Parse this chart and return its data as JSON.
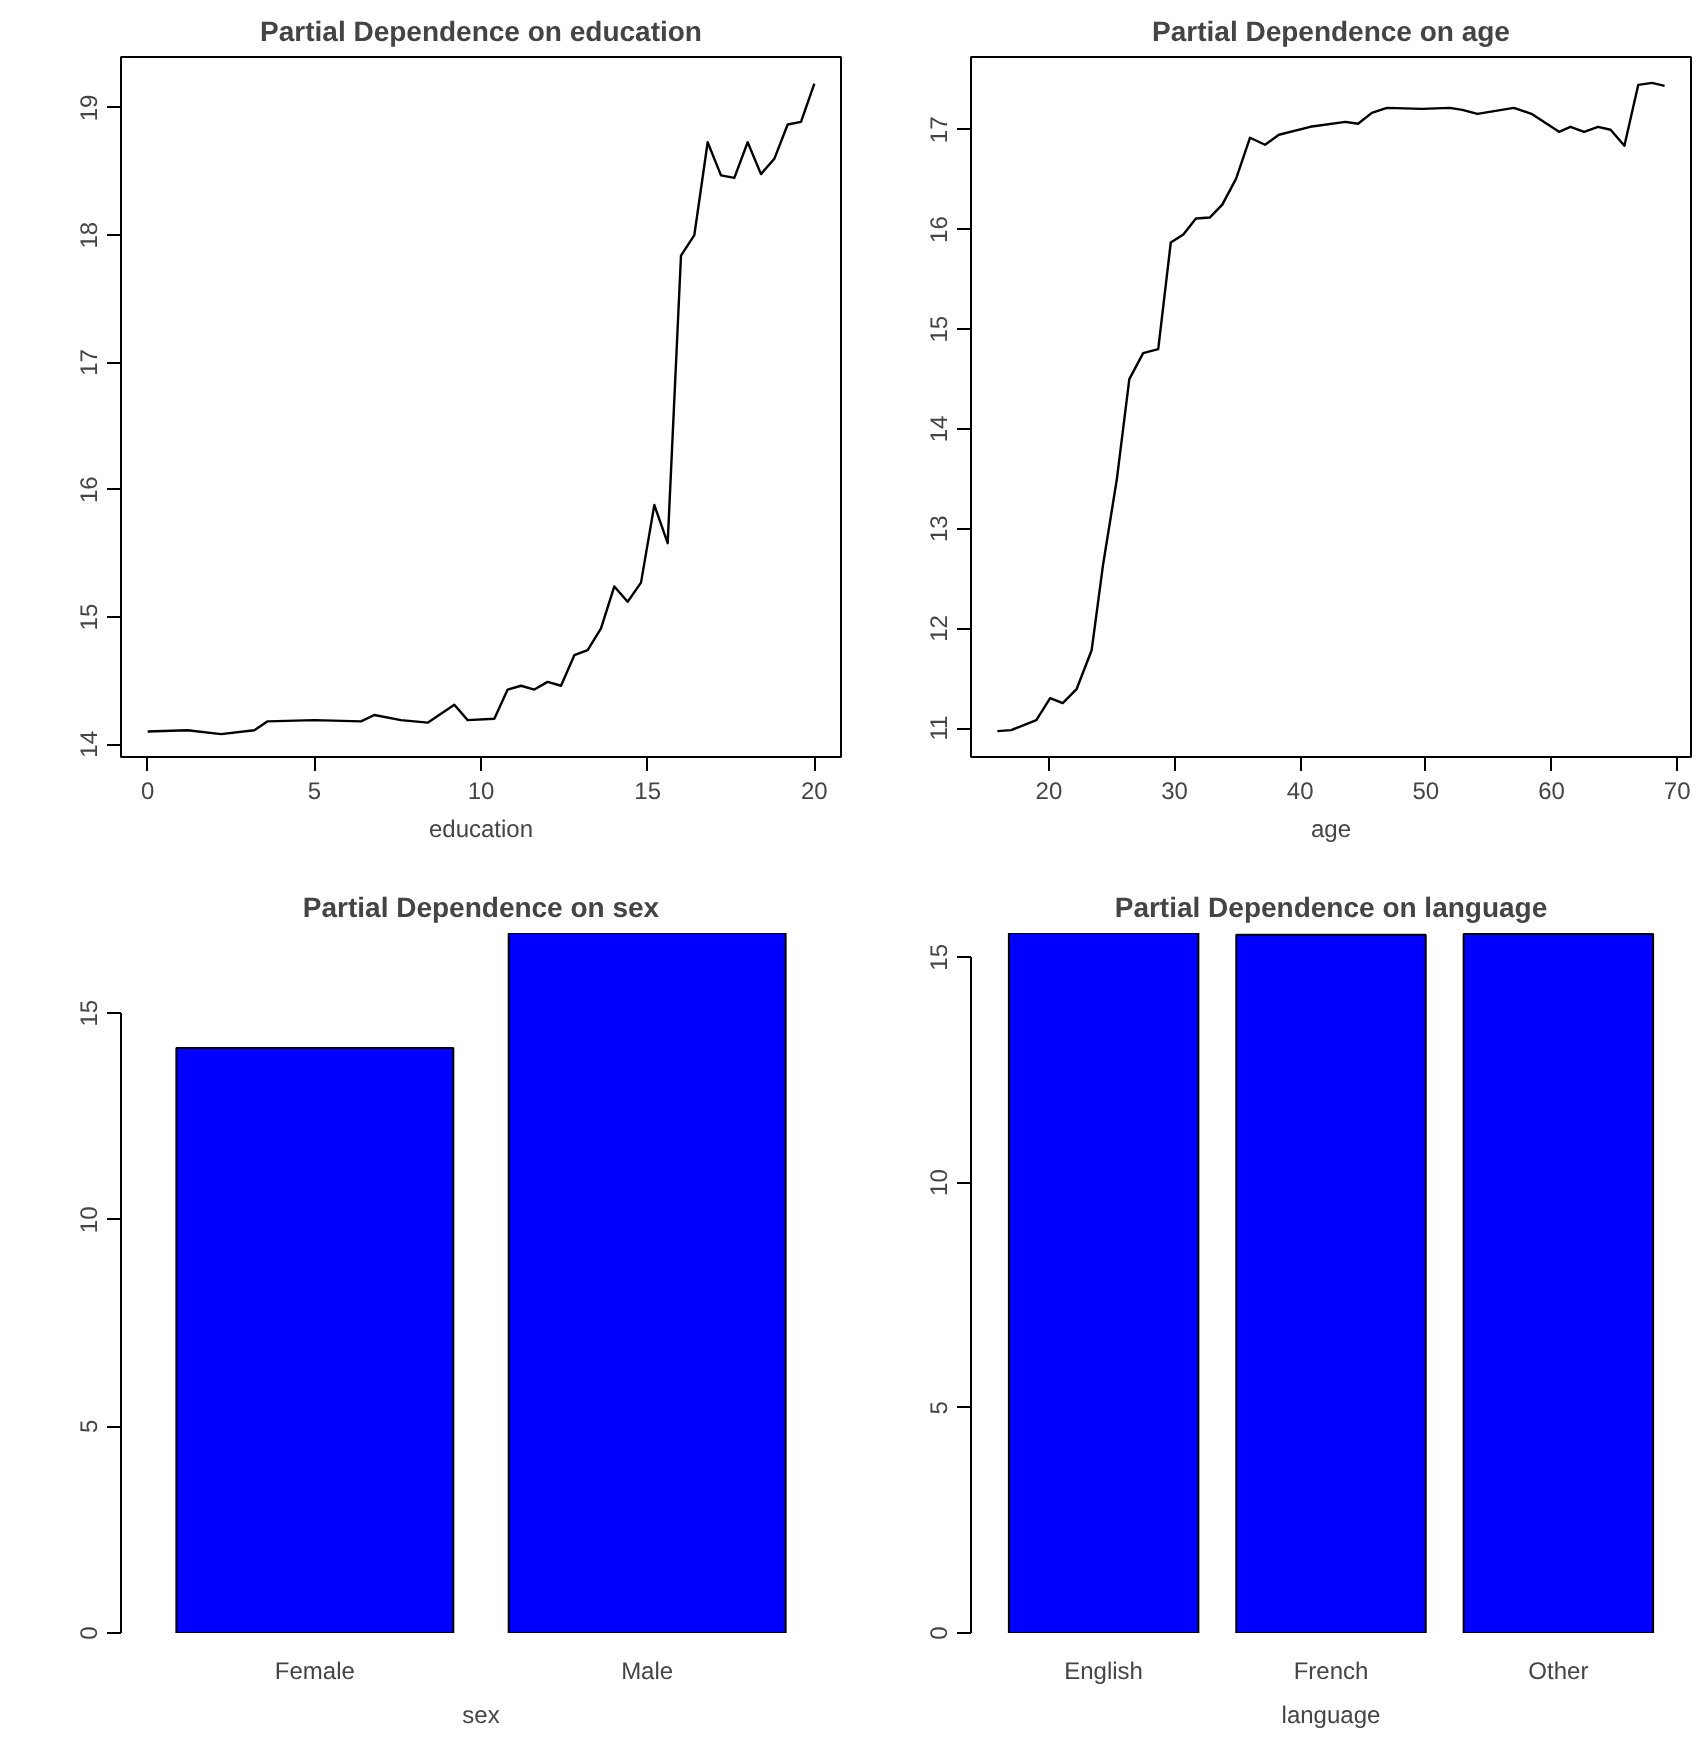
{
  "chart_data": [
    {
      "type": "line",
      "title": "Partial Dependence on education",
      "xlabel": "education",
      "color": "#000000",
      "x": [
        0,
        1.2,
        2.2,
        3.2,
        3.6,
        5.0,
        6.4,
        6.8,
        7.6,
        8.4,
        9.2,
        9.6,
        10.4,
        10.8,
        11.2,
        11.6,
        12.0,
        12.4,
        12.8,
        13.2,
        13.6,
        14.0,
        14.4,
        14.8,
        15.2,
        15.6,
        16.0,
        16.4,
        16.8,
        17.2,
        17.6,
        18.0,
        18.4,
        18.8,
        19.2,
        19.6,
        20
      ],
      "values": [
        14.1,
        14.11,
        14.08,
        14.11,
        14.18,
        14.19,
        14.18,
        14.23,
        14.19,
        14.17,
        14.31,
        14.19,
        14.2,
        14.43,
        14.46,
        14.43,
        14.49,
        14.46,
        14.7,
        14.74,
        14.91,
        15.24,
        15.12,
        15.27,
        15.88,
        15.58,
        17.84,
        18.0,
        18.73,
        18.47,
        18.45,
        18.73,
        18.48,
        18.6,
        18.87,
        18.89,
        19.19
      ],
      "xlim": [
        -0.8,
        20.8
      ],
      "ylim": [
        13.9,
        19.4
      ],
      "xticks": [
        0,
        5,
        10,
        15,
        20
      ],
      "yticks": [
        14,
        15,
        16,
        17,
        18,
        19
      ]
    },
    {
      "type": "line",
      "title": "Partial Dependence on age",
      "xlabel": "age",
      "color": "#000000",
      "x": [
        15.9,
        17.0,
        18.0,
        19.0,
        20.1,
        21.1,
        22.2,
        23.4,
        24.3,
        25.4,
        26.4,
        27.5,
        28.7,
        29.7,
        30.7,
        31.7,
        32.8,
        33.8,
        34.9,
        36.0,
        37.2,
        38.3,
        40.8,
        43.6,
        44.6,
        45.7,
        46.9,
        49.7,
        51.9,
        52.9,
        54.1,
        57.0,
        58.4,
        60.6,
        61.5,
        62.6,
        63.7,
        64.7,
        65.8,
        66.9,
        68.0,
        69.0
      ],
      "values": [
        10.97,
        10.98,
        11.03,
        11.08,
        11.3,
        11.25,
        11.39,
        11.78,
        12.63,
        13.49,
        14.5,
        14.76,
        14.8,
        15.87,
        15.95,
        16.11,
        16.12,
        16.25,
        16.51,
        16.92,
        16.85,
        16.95,
        17.03,
        17.08,
        17.06,
        17.17,
        17.22,
        17.21,
        17.22,
        17.2,
        17.16,
        17.22,
        17.16,
        16.98,
        17.03,
        16.98,
        17.03,
        17.0,
        16.84,
        17.45,
        17.47,
        17.44
      ],
      "xlim": [
        13.8,
        71.1
      ],
      "ylim": [
        10.71,
        17.73
      ],
      "xticks": [
        20,
        30,
        40,
        50,
        60,
        70
      ],
      "yticks": [
        11,
        12,
        13,
        14,
        15,
        16,
        17
      ]
    },
    {
      "type": "bar",
      "title": "Partial Dependence on sex",
      "xlabel": "sex",
      "color": "#0000ff",
      "categories": [
        "Female",
        "Male"
      ],
      "values": [
        14.16,
        16.94
      ],
      "ylim": [
        0,
        16.94
      ],
      "yticks": [
        0,
        5,
        10,
        15
      ]
    },
    {
      "type": "bar",
      "title": "Partial Dependence on language",
      "xlabel": "language",
      "color": "#0000ff",
      "categories": [
        "English",
        "French",
        "Other"
      ],
      "values": [
        15.54,
        15.5,
        15.52
      ],
      "ylim": [
        0,
        15.54
      ],
      "yticks": [
        0,
        5,
        10,
        15
      ]
    }
  ]
}
